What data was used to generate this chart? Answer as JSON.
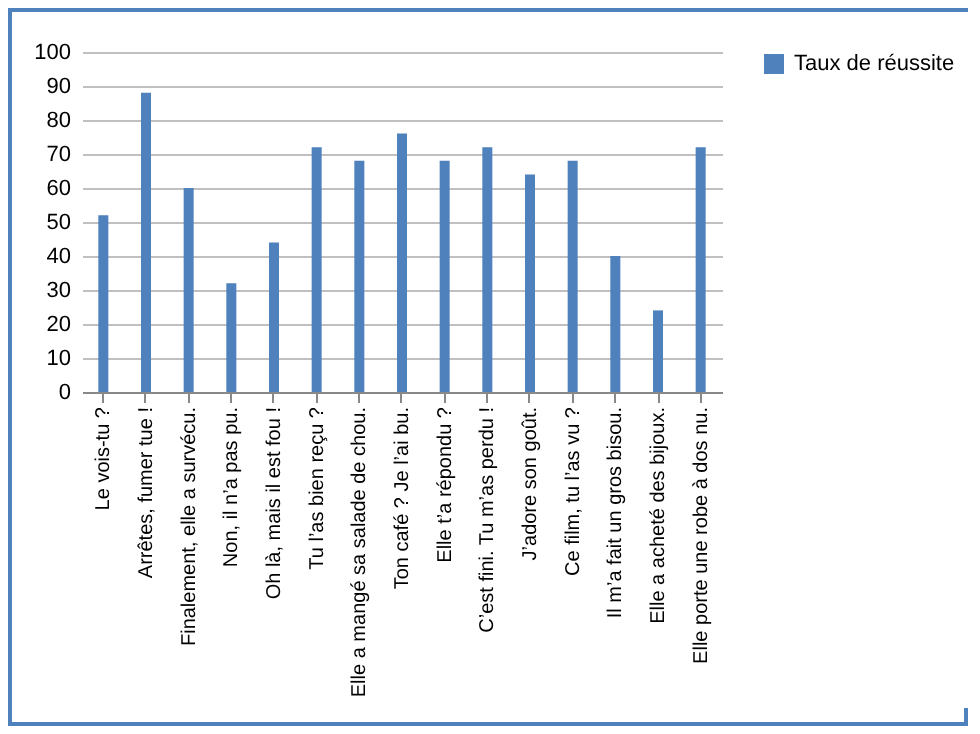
{
  "chart_data": {
    "type": "bar",
    "categories": [
      "Le vois-tu ?",
      "Arrêtes, fumer tue !",
      "Finalement, elle a survécu.",
      "Non, il n’a pas pu.",
      "Oh là, mais il est fou !",
      "Tu l’as bien reçu ?",
      "Elle a mangé sa salade de chou.",
      "Ton café ? Je l’ai bu.",
      "Elle t’a répondu ?",
      "C’est fini. Tu m’as perdu !",
      "J’adore son goût.",
      "Ce film, tu l’as vu ?",
      "Il m’a fait un gros bisou.",
      "Elle a acheté des bijoux.",
      "Elle porte une robe à dos nu."
    ],
    "series": [
      {
        "name": "Taux de réussite",
        "color": "#4f81bd",
        "values": [
          52,
          88,
          60,
          32,
          44,
          72,
          68,
          76,
          68,
          72,
          64,
          68,
          40,
          24,
          72
        ]
      }
    ],
    "ylim": [
      0,
      100
    ],
    "yticks": [
      0,
      10,
      20,
      30,
      40,
      50,
      60,
      70,
      80,
      90,
      100
    ],
    "grid": "y",
    "legend": "right"
  }
}
